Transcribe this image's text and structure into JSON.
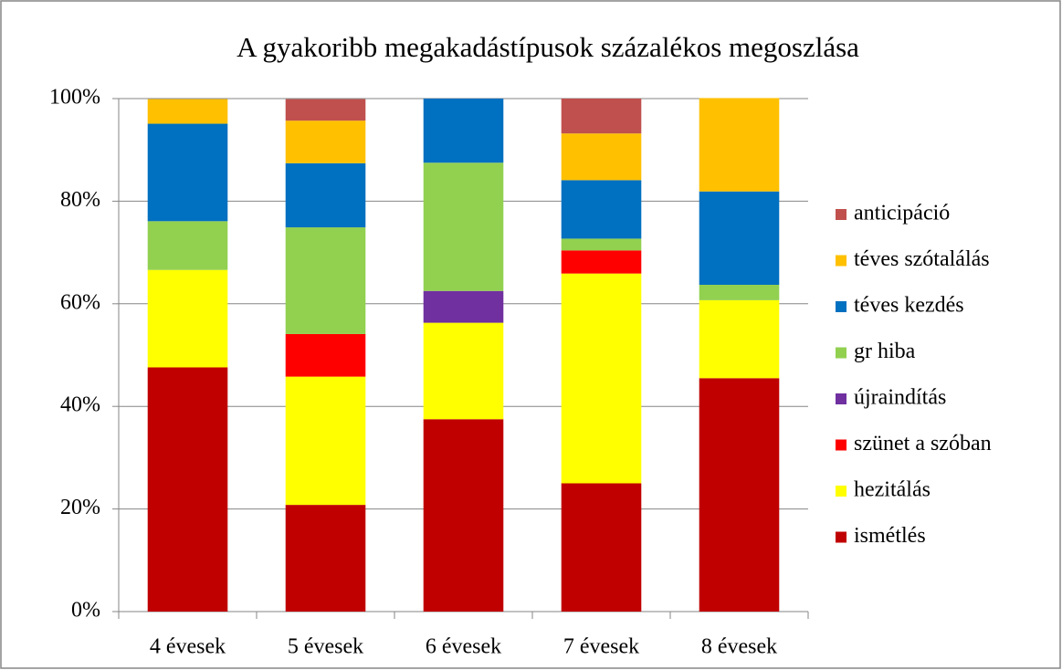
{
  "chart_data": {
    "type": "stacked_bar",
    "title": "A gyakoribb megakadástípusok százalékos megoszlása",
    "categories": [
      "4 évesek",
      "5 évesek",
      "6 évesek",
      "7 évesek",
      "8 évesek"
    ],
    "series": [
      {
        "name": "ismétlés",
        "color": "#c00000",
        "values": [
          47.6,
          20.8,
          37.5,
          25.0,
          45.5
        ]
      },
      {
        "name": "hezitálás",
        "color": "#ffff00",
        "values": [
          19.0,
          25.0,
          18.8,
          40.9,
          15.2
        ]
      },
      {
        "name": "szünet a szóban",
        "color": "#ff0000",
        "values": [
          0,
          8.3,
          0,
          4.5,
          0
        ]
      },
      {
        "name": "újraindítás",
        "color": "#7030a0",
        "values": [
          0,
          0,
          6.2,
          0,
          0
        ]
      },
      {
        "name": "gr hiba",
        "color": "#92d050",
        "values": [
          9.5,
          20.8,
          25.0,
          2.3,
          3.0
        ]
      },
      {
        "name": "téves kezdés",
        "color": "#0070c0",
        "values": [
          19.0,
          12.5,
          12.5,
          11.4,
          18.2
        ]
      },
      {
        "name": "téves szótalálás",
        "color": "#ffc000",
        "values": [
          4.8,
          8.3,
          0,
          9.1,
          18.2
        ]
      },
      {
        "name": "anticipáció",
        "color": "#c0504d",
        "values": [
          0,
          4.2,
          0,
          6.8,
          0
        ]
      }
    ],
    "ylim": [
      0,
      100
    ],
    "yticks": [
      {
        "value": 0,
        "label": "0%"
      },
      {
        "value": 20,
        "label": "20%"
      },
      {
        "value": 40,
        "label": "40%"
      },
      {
        "value": 60,
        "label": "60%"
      },
      {
        "value": 80,
        "label": "80%"
      },
      {
        "value": 100,
        "label": "100%"
      }
    ],
    "grid": true,
    "legend": "right"
  }
}
